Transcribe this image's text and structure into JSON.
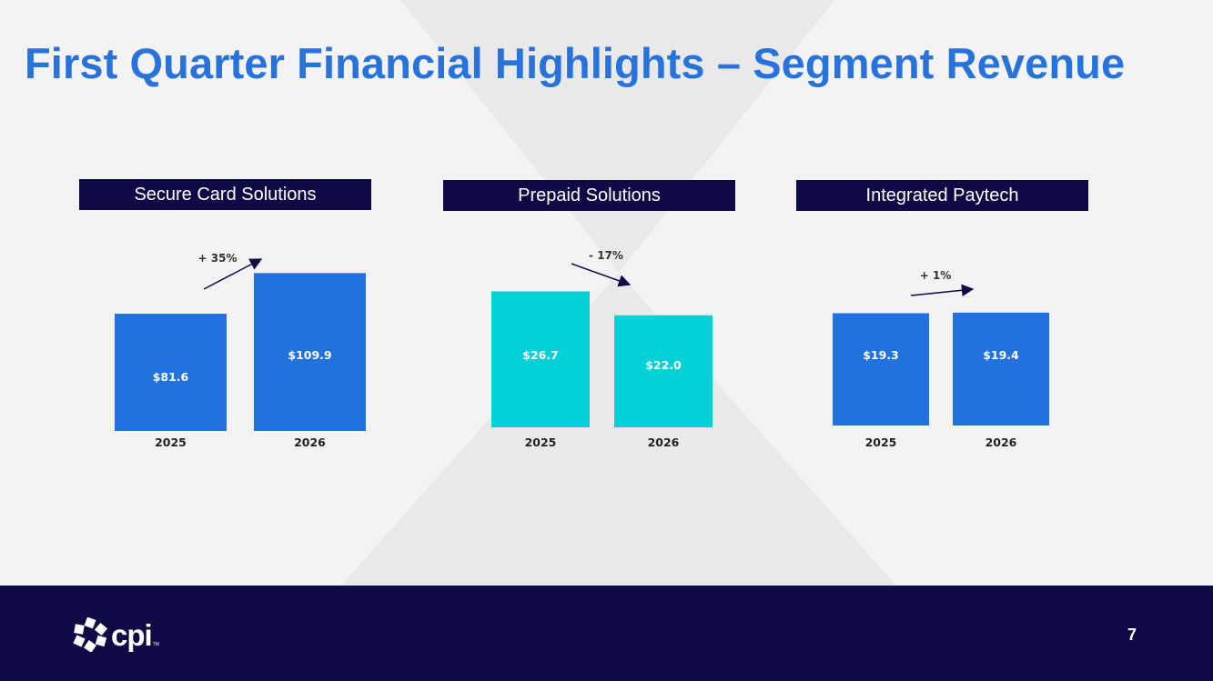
{
  "slide": {
    "title": "First Quarter Financial Highlights – Segment Revenue",
    "page_number": "7"
  },
  "logo": {
    "text": "cpi",
    "trademark": "TM"
  },
  "colors": {
    "title": "#2872dc",
    "navy": "#0e0a45",
    "blue_bar": "#2271e1",
    "teal_bar": "#00d0d8",
    "background": "#f3f3f4"
  },
  "chart_data": [
    {
      "type": "bar",
      "title": "Secure Card Solutions",
      "categories": [
        "2025",
        "2026"
      ],
      "values": [
        81.6,
        109.9
      ],
      "labels": [
        "$81.6",
        "$109.9"
      ],
      "change": "+ 35%",
      "trend": "up",
      "color": "#2271e1"
    },
    {
      "type": "bar",
      "title": "Prepaid Solutions",
      "categories": [
        "2025",
        "2026"
      ],
      "values": [
        26.7,
        22.0
      ],
      "labels": [
        "$26.7",
        "$22.0"
      ],
      "change": "- 17%",
      "trend": "down",
      "color": "#00d0d8"
    },
    {
      "type": "bar",
      "title": "Integrated Paytech",
      "categories": [
        "2025",
        "2026"
      ],
      "values": [
        19.3,
        19.4
      ],
      "labels": [
        "$19.3",
        "$19.4"
      ],
      "change": "+ 1%",
      "trend": "up",
      "color": "#2271e1"
    }
  ]
}
